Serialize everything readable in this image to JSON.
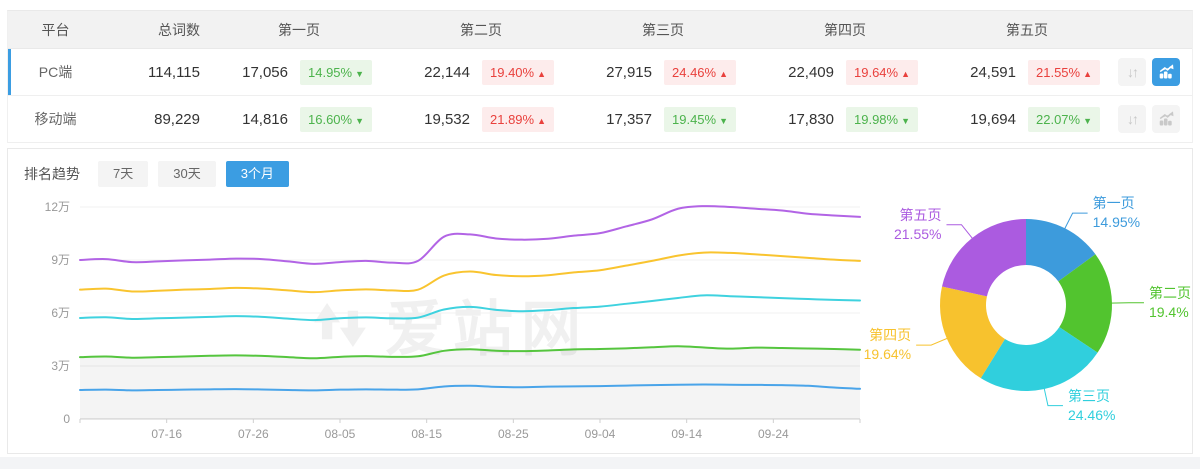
{
  "colors": {
    "accent": "#3B9DE2",
    "badge_up_text": "#E9413D",
    "badge_up_bg": "#FDECEC",
    "badge_down_text": "#4CB34C",
    "badge_down_bg": "#EAF6E8",
    "grid_line": "#F0F0F0",
    "axis_label": "#999999"
  },
  "icons": {
    "sort_arrows_glyph": "↓↑"
  },
  "table": {
    "columns": [
      "平台",
      "总词数",
      "第一页",
      "第二页",
      "第三页",
      "第四页",
      "第五页"
    ],
    "rows": [
      {
        "platform": "PC端",
        "total": "114,115",
        "active": true,
        "chart_active": true,
        "pages": [
          {
            "value": "17,056",
            "pct": "14.95%",
            "dir": "down"
          },
          {
            "value": "22,144",
            "pct": "19.40%",
            "dir": "up"
          },
          {
            "value": "27,915",
            "pct": "24.46%",
            "dir": "up"
          },
          {
            "value": "22,409",
            "pct": "19.64%",
            "dir": "up"
          },
          {
            "value": "24,591",
            "pct": "21.55%",
            "dir": "up"
          }
        ]
      },
      {
        "platform": "移动端",
        "total": "89,229",
        "active": false,
        "chart_active": false,
        "pages": [
          {
            "value": "14,816",
            "pct": "16.60%",
            "dir": "down"
          },
          {
            "value": "19,532",
            "pct": "21.89%",
            "dir": "up"
          },
          {
            "value": "17,357",
            "pct": "19.45%",
            "dir": "down"
          },
          {
            "value": "17,830",
            "pct": "19.98%",
            "dir": "down"
          },
          {
            "value": "19,694",
            "pct": "22.07%",
            "dir": "down"
          }
        ]
      }
    ]
  },
  "trend": {
    "title": "排名趋势",
    "tabs": [
      {
        "label": "7天",
        "active": false
      },
      {
        "label": "30天",
        "active": false
      },
      {
        "label": "3个月",
        "active": true
      }
    ]
  },
  "watermark": {
    "text": "爱站网"
  },
  "chart_data": [
    {
      "type": "line",
      "title": "排名趋势",
      "x_tick_labels": [
        "07-16",
        "07-26",
        "08-05",
        "08-15",
        "08-25",
        "09-04",
        "09-14",
        "09-24"
      ],
      "x_tick_days": [
        10,
        20,
        30,
        40,
        50,
        60,
        70,
        80
      ],
      "x_range_days": [
        0,
        90
      ],
      "x_step_days": 3,
      "y_ticks": [
        {
          "value": 0,
          "label": "0"
        },
        {
          "value": 3,
          "label": "3万"
        },
        {
          "value": 6,
          "label": "6万"
        },
        {
          "value": 9,
          "label": "9万"
        },
        {
          "value": 12,
          "label": "12万"
        }
      ],
      "ylim": [
        0,
        12
      ],
      "unit": "万",
      "grid": true,
      "legend_position": "none",
      "series": [
        {
          "name": "第一页",
          "color": "#49A4E9",
          "area": false,
          "values": [
            1.64,
            1.66,
            1.62,
            1.64,
            1.66,
            1.68,
            1.69,
            1.67,
            1.64,
            1.62,
            1.66,
            1.68,
            1.66,
            1.68,
            1.84,
            1.88,
            1.82,
            1.8,
            1.83,
            1.85,
            1.86,
            1.89,
            1.92,
            1.94,
            1.95,
            1.94,
            1.93,
            1.92,
            1.88,
            1.78,
            1.71
          ]
        },
        {
          "name": "第二页",
          "color": "#55C53E",
          "area": true,
          "values": [
            3.5,
            3.54,
            3.47,
            3.5,
            3.54,
            3.58,
            3.6,
            3.57,
            3.5,
            3.44,
            3.52,
            3.56,
            3.52,
            3.55,
            3.86,
            3.95,
            3.86,
            3.84,
            3.88,
            3.94,
            3.96,
            4.0,
            4.06,
            4.12,
            4.05,
            3.98,
            4.04,
            4.02,
            3.99,
            3.96,
            3.92
          ]
        },
        {
          "name": "第三页",
          "color": "#3FD2DF",
          "area": false,
          "values": [
            5.72,
            5.76,
            5.66,
            5.7,
            5.74,
            5.78,
            5.82,
            5.78,
            5.68,
            5.6,
            5.7,
            5.75,
            5.7,
            5.74,
            6.2,
            6.35,
            6.18,
            6.1,
            6.16,
            6.28,
            6.36,
            6.52,
            6.68,
            6.85,
            7.0,
            6.95,
            6.9,
            6.84,
            6.79,
            6.74,
            6.71
          ]
        },
        {
          "name": "第四页",
          "color": "#F9C42F",
          "area": false,
          "values": [
            7.32,
            7.38,
            7.22,
            7.26,
            7.32,
            7.36,
            7.42,
            7.38,
            7.28,
            7.18,
            7.28,
            7.34,
            7.28,
            7.32,
            8.12,
            8.35,
            8.15,
            8.08,
            8.14,
            8.3,
            8.42,
            8.68,
            8.95,
            9.25,
            9.42,
            9.4,
            9.32,
            9.22,
            9.12,
            9.02,
            8.95
          ]
        },
        {
          "name": "第五页",
          "color": "#B264E5",
          "area": false,
          "values": [
            9.0,
            9.05,
            8.88,
            8.92,
            8.98,
            9.02,
            9.08,
            9.05,
            8.92,
            8.78,
            8.88,
            8.95,
            8.85,
            8.95,
            10.32,
            10.45,
            10.22,
            10.15,
            10.2,
            10.38,
            10.52,
            10.9,
            11.3,
            11.9,
            12.05,
            12.0,
            11.9,
            11.8,
            11.62,
            11.52,
            11.44
          ]
        }
      ]
    },
    {
      "type": "donut",
      "legend_position": "callout-labels",
      "slices": [
        {
          "name": "第一页",
          "value": 14.95,
          "pct_label": "14.95%",
          "color": "#3D9BDC"
        },
        {
          "name": "第二页",
          "value": 19.4,
          "pct_label": "19.4%",
          "color": "#52C42F"
        },
        {
          "name": "第三页",
          "value": 24.46,
          "pct_label": "24.46%",
          "color": "#30CFDD"
        },
        {
          "name": "第四页",
          "value": 19.64,
          "pct_label": "19.64%",
          "color": "#F7C22E"
        },
        {
          "name": "第五页",
          "value": 21.55,
          "pct_label": "21.55%",
          "color": "#AB5BE0"
        }
      ]
    }
  ]
}
